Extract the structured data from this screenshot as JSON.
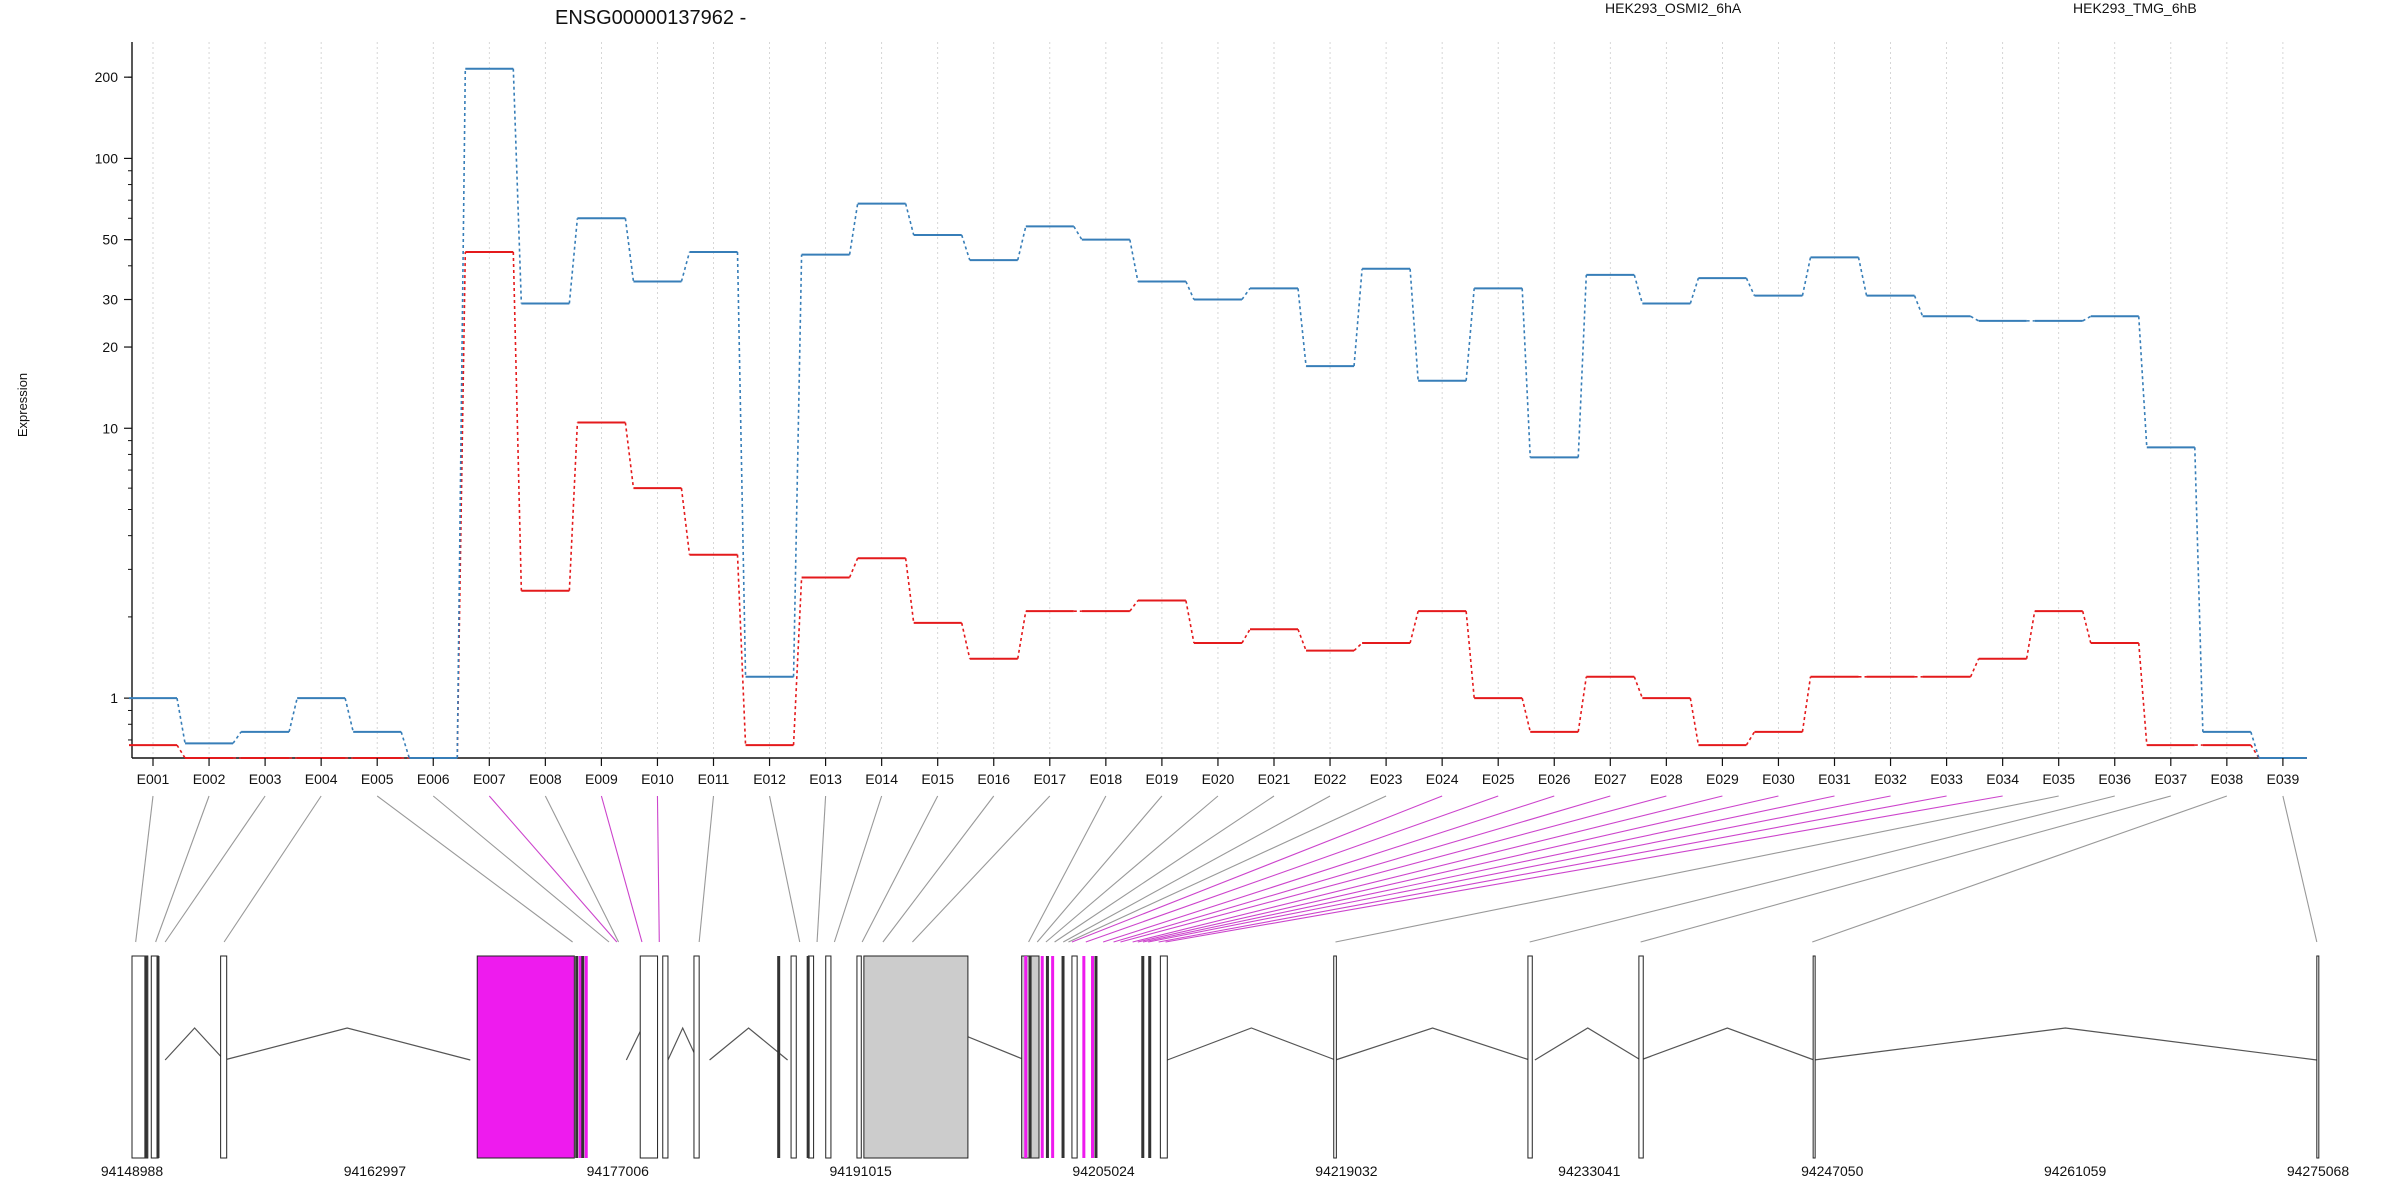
{
  "chart_data": {
    "type": "line",
    "title": "ENSG00000137962 -",
    "ylabel": "Expression",
    "xlabel": "",
    "yscale": "log",
    "ylim": [
      0.6,
      270
    ],
    "yticks": [
      1,
      10,
      20,
      30,
      50,
      100,
      200
    ],
    "grid": "vertical dotted lines at exon bins",
    "legend_position": "top",
    "exon_labels": [
      "E001",
      "E002",
      "E003",
      "E004",
      "E005",
      "E006",
      "E007",
      "E008",
      "E009",
      "E010",
      "E011",
      "E012",
      "E013",
      "E014",
      "E015",
      "E016",
      "E017",
      "E018",
      "E019",
      "E020",
      "E021",
      "E022",
      "E023",
      "E024",
      "E025",
      "E026",
      "E027",
      "E028",
      "E029",
      "E030",
      "E031",
      "E032",
      "E033",
      "E034",
      "E035",
      "E036",
      "E037",
      "E038",
      "E039"
    ],
    "series": [
      {
        "name": "HEK293_OSMI2_6hA",
        "color": "#e41a1c",
        "values": [
          0.67,
          0.6,
          0.6,
          0.6,
          0.6,
          0.6,
          45,
          2.5,
          10.5,
          6,
          3.4,
          0.67,
          2.8,
          3.3,
          1.9,
          1.4,
          2.1,
          2.1,
          2.3,
          1.6,
          1.8,
          1.5,
          1.6,
          2.1,
          1.0,
          0.75,
          1.2,
          1.0,
          0.67,
          0.75,
          1.2,
          1.2,
          1.2,
          1.4,
          2.1,
          1.6,
          0.67,
          0.67,
          0.6
        ]
      },
      {
        "name": "HEK293_TMG_6hB",
        "color": "#377eb8",
        "values": [
          1.0,
          0.68,
          0.75,
          1.0,
          0.75,
          0.6,
          215,
          29,
          60,
          35,
          45,
          1.2,
          44,
          68,
          52,
          42,
          56,
          50,
          35,
          30,
          33,
          17,
          39,
          15,
          33,
          7.8,
          37,
          29,
          36,
          31,
          43,
          31,
          26,
          25,
          25,
          26,
          8.5,
          0.75,
          0.6
        ]
      }
    ],
    "gene_model": {
      "axis_ticks": [
        "94148988",
        "94162997",
        "94177006",
        "94191015",
        "94205024",
        "94219032",
        "94233041",
        "94247050",
        "94261059",
        "94275068"
      ],
      "range": [
        94148988,
        94275068
      ]
    }
  },
  "colors": {
    "axis": "#111111",
    "grid": "#cccccc",
    "intron": "#555555",
    "exon_box": "#ffffff",
    "exon_highlight": "#ee1bee",
    "exon_gray": "#cccccc",
    "connector": "#999999",
    "connector_highlight": "#cc44cc"
  }
}
